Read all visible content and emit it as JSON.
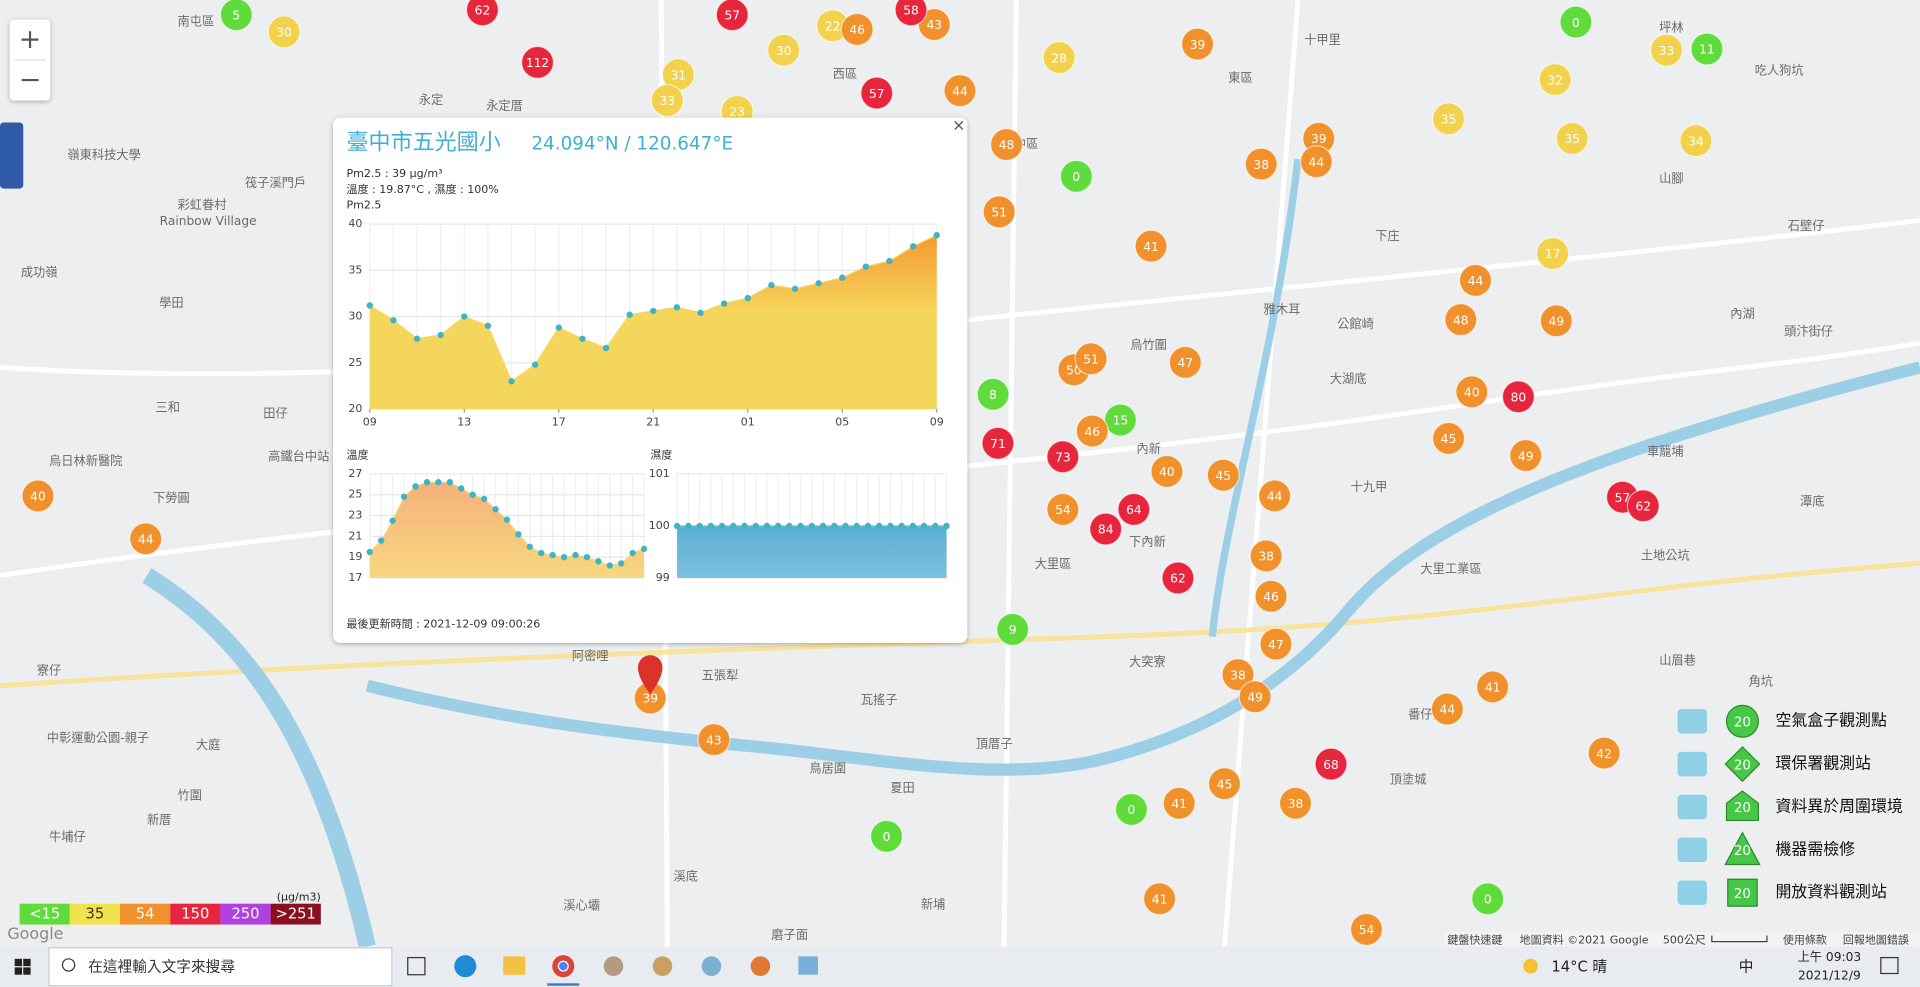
{
  "zoom": {
    "in": "+",
    "out": "−"
  },
  "map": {
    "labels": [
      "南屯區",
      "永定",
      "永定厝",
      "嶺東科技大學",
      "筏子溪門戶",
      "彩虹眷村",
      "Rainbow Village",
      "成功嶺",
      "學田",
      "三和",
      "田仔",
      "高鐵台中站",
      "烏日林新醫院",
      "下勞圓",
      "寮仔",
      "中彰運動公園-親子",
      "大庭",
      "竹圍",
      "新厝",
      "牛埔仔",
      "溪心壩",
      "阿密哩",
      "五張犁",
      "瓦搖子",
      "鳥居圍",
      "夏田",
      "頂厝子",
      "溪底",
      "新埔",
      "磨子面",
      "大里區",
      "大突寮",
      "內新",
      "下內新",
      "烏竹圍",
      "十甲里",
      "東區",
      "中區",
      "西區",
      "下庄",
      "公館崎",
      "大湖底",
      "十九甲",
      "大里工業區",
      "番仔寮",
      "頂塗城",
      "土地公坑",
      "角坑",
      "內湖",
      "山腳",
      "坪林",
      "吃人狗坑",
      "石壁仔",
      "頭汴街仔",
      "車籠埔",
      "潭底",
      "山眉巷",
      "雅木耳"
    ],
    "marker_groups": [
      {
        "color": "#5fdc3c",
        "values": [
          5,
          0,
          11,
          0,
          8,
          15,
          0,
          0,
          0,
          9
        ]
      },
      {
        "color": "#f2d24c",
        "values": [
          30,
          22,
          30,
          31,
          33,
          23,
          28,
          35,
          32,
          33,
          35,
          34,
          17
        ]
      },
      {
        "color": "#f0912c",
        "values": [
          46,
          43,
          44,
          39,
          48,
          38,
          39,
          44,
          51,
          41,
          44,
          48,
          49,
          40,
          45,
          49,
          47,
          50,
          51,
          46,
          40,
          45,
          44,
          54,
          38,
          46,
          47,
          38,
          49,
          44,
          41,
          42,
          45,
          41,
          38,
          41,
          54,
          40,
          44,
          39,
          43
        ]
      },
      {
        "color": "#e6263c",
        "values": [
          62,
          57,
          58,
          112,
          57,
          71,
          73,
          64,
          84,
          62,
          80,
          57,
          62,
          68
        ]
      }
    ]
  },
  "popup": {
    "close": "×",
    "title": "臺中市五光國小",
    "coords": "24.094°N / 120.647°E",
    "pm_line": "Pm2.5 : 39 μg/m³",
    "weather_line": "溫度 : 19.87°C , 濕度 : 100%",
    "updated": "最後更新時間 : 2021-12-09 09:00:26"
  },
  "chart_data": [
    {
      "type": "area",
      "title": "Pm2.5",
      "categories": [
        "09",
        null,
        null,
        null,
        "13",
        null,
        null,
        null,
        "17",
        null,
        null,
        null,
        "21",
        null,
        null,
        null,
        "01",
        null,
        null,
        null,
        "05",
        null,
        null,
        null,
        "09"
      ],
      "values": [
        31.2,
        29.6,
        27.6,
        28,
        30,
        29,
        23,
        24.8,
        28.8,
        27.6,
        26.6,
        30.2,
        30.6,
        31,
        30.4,
        31.4,
        32,
        33.4,
        33,
        33.6,
        34.2,
        35.4,
        36,
        37.6,
        38.8
      ],
      "color": "#f5d65c",
      "top_color": "#f59a34",
      "dot_color": "#3fb4c4",
      "ylim": [
        20,
        40
      ],
      "yticks": [
        20,
        25,
        30,
        35,
        40
      ],
      "grid": true
    },
    {
      "type": "area",
      "title": "溫度",
      "values": [
        19.5,
        20.6,
        22.5,
        24.8,
        25.8,
        26.2,
        26.2,
        26.2,
        25.6,
        25,
        24.6,
        23.6,
        22.6,
        21.2,
        20,
        19.4,
        19.2,
        19,
        19.2,
        19,
        18.6,
        18.2,
        18.4,
        19.4,
        19.8
      ],
      "color": "#f8d880",
      "top_color": "#f5b07a",
      "dot_color": "#3fb4c4",
      "ylim": [
        17,
        27
      ],
      "yticks": [
        17,
        19,
        21,
        23,
        25,
        27
      ],
      "grid": true
    },
    {
      "type": "area",
      "title": "濕度",
      "values": [
        100,
        100,
        100,
        100,
        100,
        100,
        100,
        100,
        100,
        100,
        100,
        100,
        100,
        100,
        100,
        100,
        100,
        100,
        100,
        100,
        100,
        100,
        100,
        100,
        100
      ],
      "color": "#7cc0de",
      "top_color": "#5aaed4",
      "dot_color": "#3fb4c4",
      "ylim": [
        99,
        101
      ],
      "yticks": [
        99,
        100,
        101
      ],
      "grid": true
    }
  ],
  "legend": {
    "icon_label": "20",
    "items": [
      "空氣盒子觀測點",
      "環保署觀測站",
      "資料異於周圍環境",
      "機器需檢修",
      "開放資料觀測站"
    ]
  },
  "scale_bar": {
    "unit": "(μg/m3)",
    "items": [
      {
        "label": "<15",
        "color": "#5fdc3c"
      },
      {
        "label": "35",
        "color": "#f2e24c"
      },
      {
        "label": "54",
        "color": "#f0912c"
      },
      {
        "label": "150",
        "color": "#e6263c"
      },
      {
        "label": "250",
        "color": "#b040e0"
      },
      {
        "label": ">251",
        "color": "#8a1020"
      }
    ]
  },
  "attribution": {
    "google": "Google",
    "items": [
      "鍵盤快速鍵",
      "地圖資料 ©2021 Google",
      "500公尺",
      "使用條款",
      "回報地圖錯誤"
    ]
  },
  "taskbar": {
    "search": "在這裡輸入文字來搜尋",
    "weather": "14°C 晴",
    "ime": "中",
    "time": "上午 09:03",
    "date": "2021/12/9"
  }
}
